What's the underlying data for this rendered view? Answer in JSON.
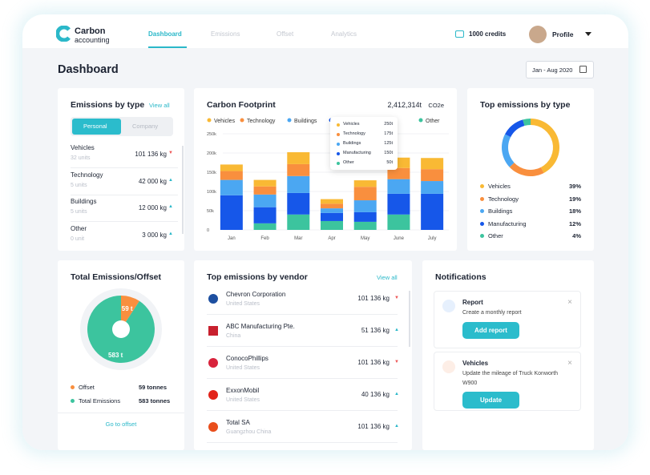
{
  "header": {
    "brand_line1": "Carbon",
    "brand_line2": "accounting",
    "nav": [
      "Dashboard",
      "Emissions",
      "Offset",
      "Analytics"
    ],
    "credits": "1000 credits",
    "profile": "Profile"
  },
  "page_title": "Dashboard",
  "date_range": "Jan - Aug 2020",
  "emissions_by_type": {
    "title": "Emissions by type",
    "view_all": "View all",
    "tabs": [
      "Personal",
      "Company"
    ],
    "items": [
      {
        "name": "Vehicles",
        "units": "32 units",
        "value": "101 136 kg"
      },
      {
        "name": "Technology",
        "units": "5 units",
        "value": "42 000 kg"
      },
      {
        "name": "Buildings",
        "units": "5 units",
        "value": "12 000 kg"
      },
      {
        "name": "Other",
        "units": "0 unit",
        "value": "3 000 kg"
      }
    ]
  },
  "carbon_footprint": {
    "type": "bar",
    "stacked": true,
    "title": "Carbon Footprint",
    "total": "2,412,314t",
    "total_unit": "CO2e",
    "categories": [
      "Jan",
      "Feb",
      "Mar",
      "Apr",
      "May",
      "June",
      "July"
    ],
    "series": [
      {
        "name": "Vehicles",
        "color": "#f9b934",
        "values": [
          17000,
          17000,
          31000,
          12000,
          17000,
          27000,
          29000
        ]
      },
      {
        "name": "Technology",
        "color": "#f98f3e",
        "values": [
          23000,
          21000,
          31000,
          12000,
          35000,
          29000,
          31000
        ]
      },
      {
        "name": "Buildings",
        "color": "#4ba7f2",
        "values": [
          40000,
          33000,
          44000,
          12000,
          31000,
          38000,
          33000
        ]
      },
      {
        "name": "Manufacturing",
        "color": "#1657e9",
        "values": [
          90000,
          42000,
          56000,
          21000,
          25000,
          54000,
          94000
        ]
      },
      {
        "name": "Other",
        "color": "#3cc49e",
        "values": [
          0,
          17000,
          40000,
          23000,
          21000,
          40000,
          0
        ]
      }
    ],
    "ylim": [
      0,
      250000
    ],
    "yticks": [
      0,
      {
        "value": 50000,
        "label": "50k"
      },
      {
        "value": 100000,
        "label": "100k"
      },
      {
        "value": 150000,
        "label": "150k"
      },
      {
        "value": 200000,
        "label": "200k"
      },
      {
        "value": 250000,
        "label": "250k"
      }
    ],
    "tooltip": [
      {
        "name": "Vehicles",
        "value": "250t"
      },
      {
        "name": "Technology",
        "value": "175t"
      },
      {
        "name": "Buildings",
        "value": "125t"
      },
      {
        "name": "Manufacturing",
        "value": "150t"
      },
      {
        "name": "Other",
        "value": "50t"
      }
    ]
  },
  "top_emissions_by_type": {
    "type": "pie",
    "donut": true,
    "title": "Top emissions by type",
    "categories": [
      "Vehicles",
      "Technology",
      "Buildings",
      "Manufacturing",
      "Other"
    ],
    "values": [
      39,
      19,
      18,
      12,
      4
    ],
    "value_labels": [
      "39%",
      "19%",
      "18%",
      "12%",
      "4%"
    ],
    "colors": [
      "#f9b934",
      "#f98f3e",
      "#4ba7f2",
      "#1657e9",
      "#3cc49e"
    ]
  },
  "total_emissions_offset": {
    "title": "Total Emissions/Offset",
    "chart": {
      "type": "pie",
      "categories": [
        "Offset",
        "Total Emissions"
      ],
      "values": [
        59,
        583
      ],
      "value_labels": [
        "59 t",
        "583 t"
      ],
      "colors": [
        "#f98f3e",
        "#3cc49e"
      ]
    },
    "legend_values": [
      "59 tonnes",
      "583 tonnes"
    ],
    "link": "Go to offset"
  },
  "top_vendors": {
    "title": "Top emissions by vendor",
    "view_all": "View all",
    "items": [
      {
        "name": "Chevron Corporation",
        "country": "United States",
        "value": "101 136 kg"
      },
      {
        "name": "ABC Manufacturing Pte.",
        "country": "China",
        "value": "51 136 kg"
      },
      {
        "name": "ConocoPhillips",
        "country": "United States",
        "value": "101 136 kg"
      },
      {
        "name": "ExxonMobil",
        "country": "United States",
        "value": "40 136 kg"
      },
      {
        "name": "Total SA",
        "country": "Guangzhou China",
        "value": "101 136 kg"
      }
    ]
  },
  "notifications": {
    "title": "Notifications",
    "items": [
      {
        "title": "Report",
        "text": "Create a monthly report",
        "button": "Add report"
      },
      {
        "title": "Vehicles",
        "text": "Update the mileage of Truck Konworth W900",
        "button": "Update"
      }
    ]
  }
}
